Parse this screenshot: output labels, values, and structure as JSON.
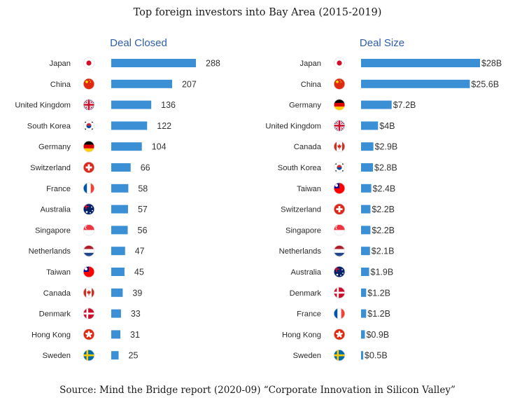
{
  "title": "Top foreign investors into Bay Area (2015-2019)",
  "source": "Source: Mind the Bridge report (2020-09) “Corporate Innovation in Silicon Valley”",
  "colors": {
    "bar": "#3b8fd4",
    "title": "#2e5ea8",
    "text": "#2a2a2a"
  },
  "chart_data": [
    {
      "type": "bar",
      "orientation": "horizontal",
      "title": "Deal Closed",
      "categories": [
        "Japan",
        "China",
        "United Kingdom",
        "South Korea",
        "Germany",
        "Switzerland",
        "France",
        "Australia",
        "Singapore",
        "Netherlands",
        "Taiwan",
        "Canada",
        "Denmark",
        "Hong Kong",
        "Sweden"
      ],
      "flags": [
        "japan-flag-icon",
        "china-flag-icon",
        "uk-flag-icon",
        "south-korea-flag-icon",
        "germany-flag-icon",
        "switzerland-flag-icon",
        "france-flag-icon",
        "australia-flag-icon",
        "singapore-flag-icon",
        "netherlands-flag-icon",
        "taiwan-flag-icon",
        "canada-flag-icon",
        "denmark-flag-icon",
        "hong-kong-flag-icon",
        "sweden-flag-icon"
      ],
      "values": [
        288,
        207,
        136,
        122,
        104,
        66,
        58,
        57,
        56,
        47,
        45,
        39,
        33,
        31,
        25
      ],
      "labels": [
        "288",
        "207",
        "136",
        "122",
        "104",
        "66",
        "58",
        "57",
        "56",
        "47",
        "45",
        "39",
        "33",
        "31",
        "25"
      ],
      "xlim": [
        0,
        288
      ]
    },
    {
      "type": "bar",
      "orientation": "horizontal",
      "title": "Deal Size",
      "categories": [
        "Japan",
        "China",
        "Germany",
        "United Kingdom",
        "Canada",
        "South Korea",
        "Taiwan",
        "Switzerland",
        "Singapore",
        "Netherlands",
        "Australia",
        "Denmark",
        "France",
        "Hong Kong",
        "Sweden"
      ],
      "flags": [
        "japan-flag-icon",
        "china-flag-icon",
        "germany-flag-icon",
        "uk-flag-icon",
        "canada-flag-icon",
        "south-korea-flag-icon",
        "taiwan-flag-icon",
        "switzerland-flag-icon",
        "singapore-flag-icon",
        "netherlands-flag-icon",
        "australia-flag-icon",
        "denmark-flag-icon",
        "france-flag-icon",
        "hong-kong-flag-icon",
        "sweden-flag-icon"
      ],
      "values": [
        28,
        25.6,
        7.2,
        4,
        2.9,
        2.8,
        2.4,
        2.2,
        2.2,
        2.1,
        1.9,
        1.2,
        1.2,
        0.9,
        0.5
      ],
      "labels": [
        "$28B",
        "$25.6B",
        "$7.2B",
        "$4B",
        "$2.9B",
        "$2.8B",
        "$2.4B",
        "$2.2B",
        "$2.2B",
        "$2.1B",
        "$1.9B",
        "$1.2B",
        "$1.2B",
        "$0.9B",
        "$0.5B"
      ],
      "xlim": [
        0,
        28
      ]
    }
  ]
}
